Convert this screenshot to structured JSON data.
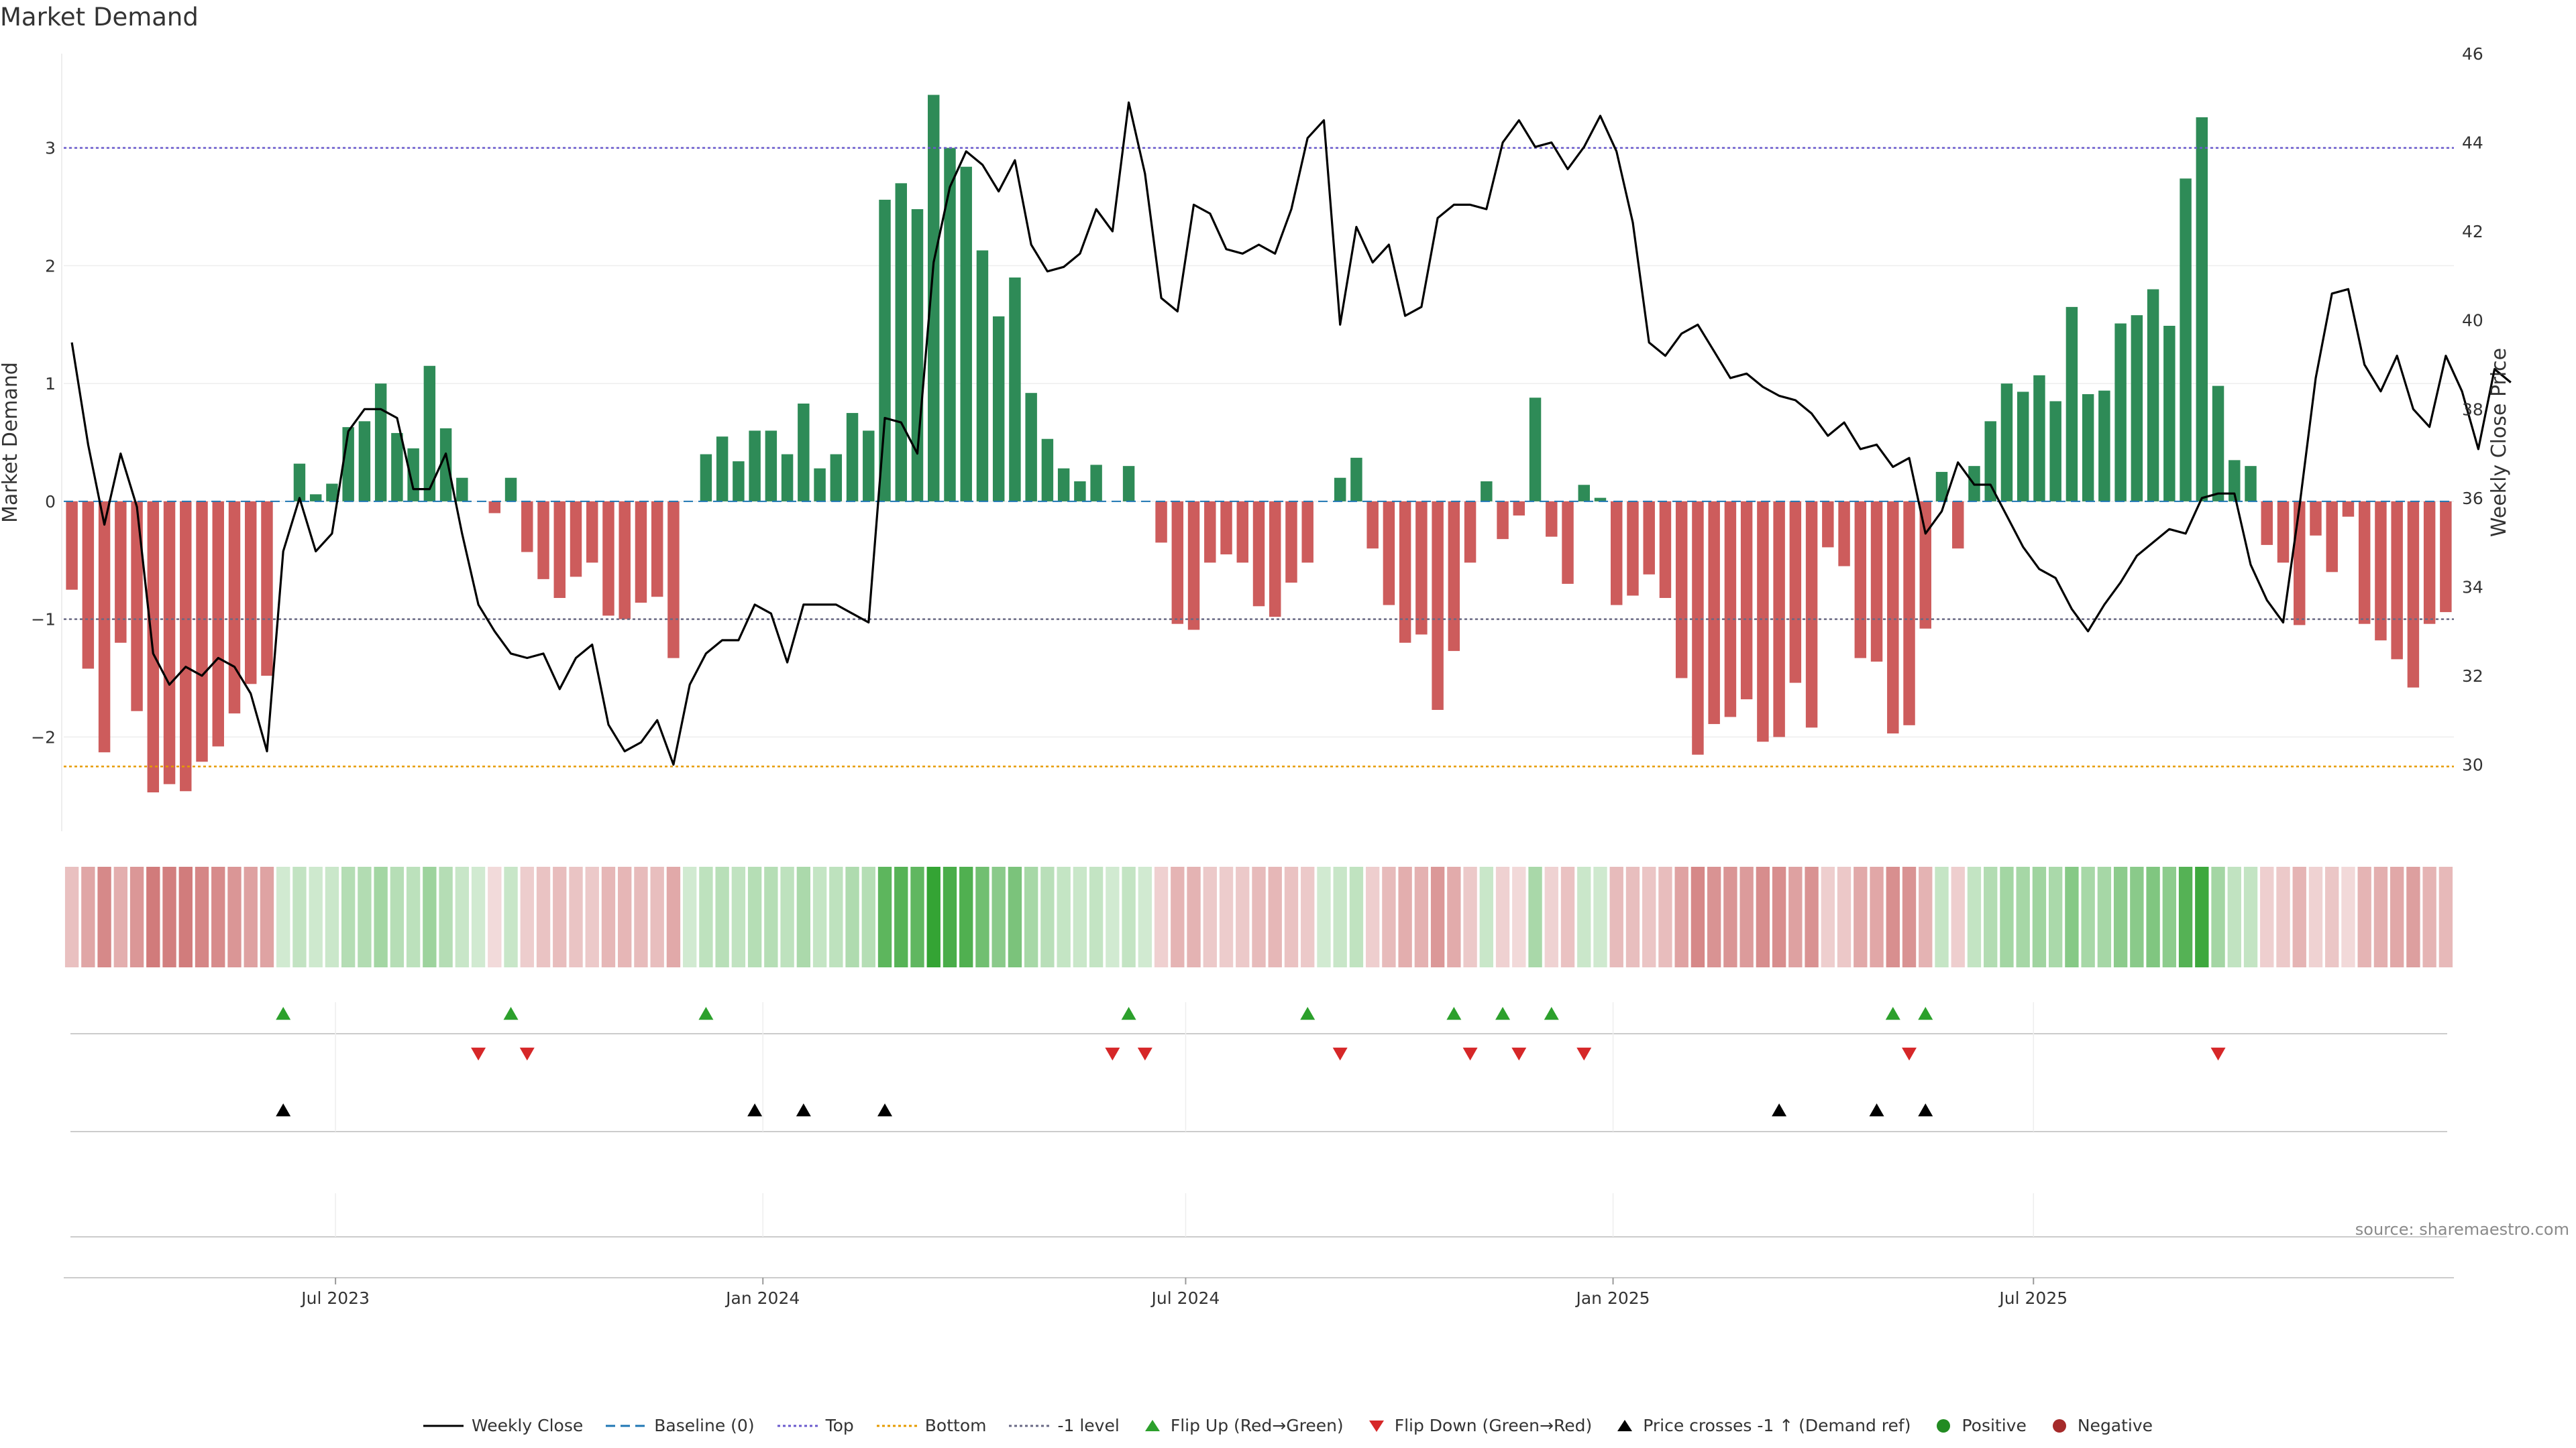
{
  "title": "Market Demand",
  "source_text": "source: sharemaestro.com",
  "legend": [
    {
      "key": "close",
      "label": "Weekly Close"
    },
    {
      "key": "baseline",
      "label": "Baseline (0)"
    },
    {
      "key": "top",
      "label": "Top"
    },
    {
      "key": "bottom",
      "label": "Bottom"
    },
    {
      "key": "minus1",
      "label": "-1 level"
    },
    {
      "key": "flipup",
      "label": "Flip Up (Red→Green)"
    },
    {
      "key": "flipdown",
      "label": "Flip Down (Green→Red)"
    },
    {
      "key": "cross",
      "label": "Price crosses -1 ↑ (Demand ref)"
    },
    {
      "key": "pos",
      "label": "Positive"
    },
    {
      "key": "neg",
      "label": "Negative"
    }
  ],
  "colors": {
    "positive": "#2e8b57",
    "negative": "#cd5c5c",
    "close": "#000000",
    "top": "#6a5acd",
    "bottom": "#e69b00",
    "minus1": "#696984",
    "baseline": "#1f77b4",
    "flip_up": "#2ca02c",
    "flip_down": "#d62728",
    "cross": "#000000",
    "legend_positive": "#228b22",
    "legend_negative": "#a52a2a"
  },
  "chart_data": {
    "type": "bar",
    "start_date": "2023-03-06",
    "x_tick_labels": [
      "Jul 2023",
      "Jan 2024",
      "Jul 2024",
      "Jan 2025",
      "Jul 2025"
    ],
    "x_tick_dates": [
      "2023-07-01",
      "2024-01-01",
      "2024-07-01",
      "2025-01-01",
      "2025-07-01"
    ],
    "left_axis": {
      "label": "Market Demand",
      "ticks": [
        -2,
        -1,
        0,
        1,
        2,
        3
      ],
      "tick_labels": [
        "−2",
        "−1",
        "0",
        "1",
        "2",
        "3"
      ],
      "range": [
        -2.8,
        3.8
      ]
    },
    "right_axis": {
      "label": "Weekly Close Price",
      "ticks": [
        30,
        32,
        34,
        36,
        38,
        40,
        42,
        44,
        46
      ],
      "range": [
        28.5,
        46
      ]
    },
    "reference_lines": {
      "top": 3.0,
      "bottom": -2.25,
      "minus1": -1.0,
      "baseline": 0
    },
    "demand": [
      -0.75,
      -1.42,
      -2.13,
      -1.2,
      -1.78,
      -2.47,
      -2.4,
      -2.46,
      -2.21,
      -2.08,
      -1.8,
      -1.55,
      -1.48,
      0,
      0.32,
      0.06,
      0.15,
      0.63,
      0.68,
      1.0,
      0.58,
      0.45,
      1.15,
      0.62,
      0.2,
      0,
      -0.1,
      0.2,
      -0.43,
      -0.66,
      -0.82,
      -0.64,
      -0.52,
      -0.97,
      -1.0,
      -0.86,
      -0.81,
      -1.33,
      0,
      0.4,
      0.55,
      0.34,
      0.6,
      0.6,
      0.4,
      0.83,
      0.28,
      0.4,
      0.75,
      0.6,
      2.56,
      2.7,
      2.48,
      3.45,
      3.0,
      2.84,
      2.13,
      1.57,
      1.9,
      0.92,
      0.53,
      0.28,
      0.17,
      0.31,
      0,
      0.3,
      0,
      -0.35,
      -1.04,
      -1.09,
      -0.52,
      -0.45,
      -0.52,
      -0.89,
      -0.98,
      -0.69,
      -0.52,
      0,
      0.2,
      0.37,
      -0.4,
      -0.88,
      -1.2,
      -1.13,
      -1.77,
      -1.27,
      -0.52,
      0.17,
      -0.32,
      -0.12,
      0.88,
      -0.3,
      -0.7,
      0.14,
      0.03,
      -0.88,
      -0.8,
      -0.62,
      -0.82,
      -1.5,
      -2.15,
      -1.89,
      -1.83,
      -1.68,
      -2.04,
      -2.0,
      -1.54,
      -1.92,
      -0.39,
      -0.55,
      -1.33,
      -1.36,
      -1.97,
      -1.9,
      -1.08,
      0.25,
      -0.4,
      0.3,
      0.68,
      1.0,
      0.93,
      1.07,
      0.85,
      1.65,
      0.91,
      0.94,
      1.51,
      1.58,
      1.8,
      1.49,
      2.74,
      3.26,
      0.98,
      0.35,
      0.3,
      -0.37,
      -0.52,
      -1.05,
      -0.29,
      -0.6,
      -0.13,
      -1.04,
      -1.18,
      -1.34,
      -1.58,
      -1.04,
      -0.94
    ],
    "weekly_close": [
      39.5,
      37.2,
      35.4,
      37.0,
      35.8,
      32.5,
      31.8,
      32.2,
      32.0,
      32.4,
      32.2,
      31.6,
      30.3,
      34.8,
      36.0,
      34.8,
      35.2,
      37.5,
      38.0,
      38.0,
      37.8,
      36.2,
      36.2,
      37.0,
      35.2,
      33.6,
      33.0,
      32.5,
      32.4,
      32.5,
      31.7,
      32.4,
      32.7,
      30.9,
      30.3,
      30.5,
      31.0,
      30.0,
      31.8,
      32.5,
      32.8,
      32.8,
      33.6,
      33.4,
      32.3,
      33.6,
      33.6,
      33.6,
      33.4,
      33.2,
      37.8,
      37.7,
      37.0,
      41.3,
      43.0,
      43.8,
      43.5,
      42.9,
      43.6,
      41.7,
      41.1,
      41.2,
      41.5,
      42.5,
      42.0,
      44.9,
      43.3,
      40.5,
      40.2,
      42.6,
      42.4,
      41.6,
      41.5,
      41.7,
      41.5,
      42.5,
      44.1,
      44.5,
      39.9,
      42.1,
      41.3,
      41.7,
      40.1,
      40.3,
      42.3,
      42.6,
      42.6,
      42.5,
      44.0,
      44.5,
      43.9,
      44.0,
      43.4,
      43.9,
      44.6,
      43.8,
      42.2,
      39.5,
      39.2,
      39.7,
      39.9,
      39.3,
      38.7,
      38.8,
      38.5,
      38.3,
      38.2,
      37.9,
      37.4,
      37.7,
      37.1,
      37.2,
      36.7,
      36.9,
      35.2,
      35.7,
      36.8,
      36.3,
      36.3,
      35.6,
      34.9,
      34.4,
      34.2,
      33.5,
      33.0,
      33.6,
      34.1,
      34.7,
      35.0,
      35.3,
      35.2,
      36.0,
      36.1,
      36.1,
      34.5,
      33.7,
      33.2,
      35.8,
      38.7,
      40.6,
      40.7,
      39.0,
      38.4,
      39.2,
      38.0,
      37.6,
      39.2,
      38.4,
      37.1,
      38.9,
      38.6
    ]
  },
  "events": {
    "flip_up_weeks": [
      13,
      27,
      39,
      65,
      76,
      85,
      88,
      91,
      112,
      114
    ],
    "flip_down_weeks": [
      25,
      28,
      64,
      66,
      78,
      86,
      89,
      93,
      113,
      132
    ],
    "cross_weeks": [
      13,
      42,
      45,
      50,
      105,
      111,
      114
    ]
  }
}
